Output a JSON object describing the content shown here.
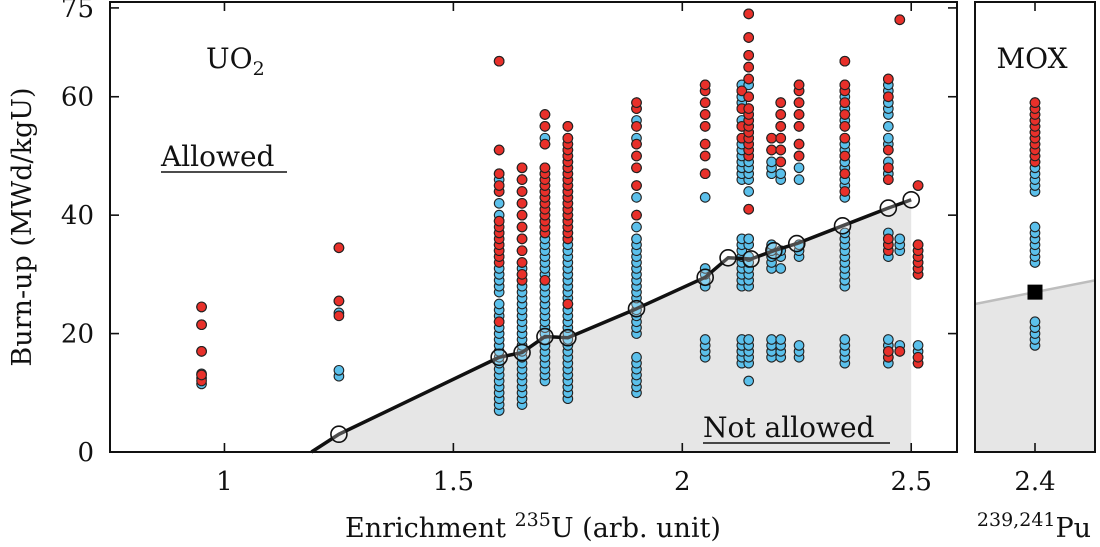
{
  "chart_data": [
    {
      "panel": "UO2",
      "type": "scatter",
      "xlabel_prefix": "Enrichment ",
      "xlabel_sup": "235",
      "xlabel_suffix": "U (arb. unit)",
      "ylabel": "Burn-up (MWd/kgU)",
      "xlim": [
        0.75,
        2.6
      ],
      "ylim": [
        0,
        76
      ],
      "xticks": [
        "1",
        "1.5",
        "2",
        "2.5"
      ],
      "xtick_values": [
        1,
        1.5,
        2,
        2.5
      ],
      "yticks": [
        "0",
        "20",
        "40",
        "60",
        "75"
      ],
      "ytick_values": [
        0,
        20,
        40,
        60,
        75
      ],
      "grid": false,
      "annotations": {
        "material_main": "UO",
        "material_sub": "2",
        "allowed": "Allowed",
        "not_allowed": "Not allowed"
      },
      "colors": {
        "blue": "#5bc0eb",
        "red": "#e8302a",
        "boundary": "#111111",
        "region_fill": "#e6e6e6"
      },
      "limit_curve": {
        "name": "limit",
        "x": [
          1.19,
          1.25,
          1.6,
          1.65,
          1.7,
          1.75,
          1.9,
          2.05,
          2.1,
          2.15,
          2.2,
          2.25,
          2.35,
          2.45,
          2.5
        ],
        "y": [
          0,
          3,
          16,
          16.8,
          19.5,
          19.3,
          24.2,
          29.5,
          32.8,
          32.6,
          34,
          35.2,
          38.2,
          41.2,
          42.6
        ]
      },
      "limit_markers_x": [
        1.25,
        1.6,
        1.65,
        1.7,
        1.75,
        1.9,
        2.05,
        2.1,
        2.15,
        2.2,
        2.25,
        2.35,
        2.45,
        2.5
      ],
      "limit_markers_y": [
        3,
        16,
        16.8,
        19.5,
        19.3,
        24.2,
        29.5,
        32.8,
        32.6,
        34,
        35.2,
        38.2,
        41.2,
        42.6
      ],
      "series": [
        {
          "color": "blue",
          "x": 0.95,
          "y": [
            11.5,
            12.5,
            13.2,
            17,
            21.5,
            24.5
          ]
        },
        {
          "color": "red",
          "x": 0.95,
          "y": [
            12,
            13,
            17,
            21.5,
            24.5
          ]
        },
        {
          "color": "blue",
          "x": 1.25,
          "y": [
            12.8,
            13.8,
            23.5,
            25.5,
            34.5
          ]
        },
        {
          "color": "red",
          "x": 1.25,
          "y": [
            23,
            25.5,
            34.5
          ]
        },
        {
          "color": "blue",
          "x": 1.6,
          "y": [
            7,
            8,
            9,
            10,
            11,
            12,
            13,
            14,
            15,
            16,
            17,
            18,
            19,
            20,
            21,
            22,
            23,
            24,
            25,
            27,
            28,
            29,
            30,
            31,
            33,
            34,
            35,
            37,
            39,
            40,
            42,
            44,
            45,
            46,
            47,
            51,
            66
          ]
        },
        {
          "color": "red",
          "x": 1.6,
          "y": [
            22,
            32,
            33,
            34,
            35,
            36,
            37,
            38,
            39,
            44,
            45,
            47,
            51,
            66
          ]
        },
        {
          "color": "blue",
          "x": 1.65,
          "y": [
            8,
            9,
            10,
            11,
            12,
            13,
            14,
            15,
            16,
            17,
            18,
            19,
            20,
            21,
            22,
            23,
            24,
            25,
            26,
            27,
            28,
            29,
            30,
            31,
            32,
            34,
            36,
            38,
            40,
            42,
            44,
            46,
            48
          ]
        },
        {
          "color": "red",
          "x": 1.65,
          "y": [
            29,
            30,
            32,
            34,
            36,
            38,
            40,
            42,
            44,
            46,
            48
          ]
        },
        {
          "color": "blue",
          "x": 1.7,
          "y": [
            12,
            13,
            14,
            15,
            16,
            17,
            18,
            19,
            20,
            21,
            22,
            23,
            24,
            25,
            26,
            27,
            28,
            29,
            30,
            31,
            32,
            33,
            34,
            35,
            36,
            37,
            38,
            39,
            40,
            41,
            42,
            43,
            44,
            45,
            46,
            47,
            48,
            52,
            53,
            55,
            57
          ]
        },
        {
          "color": "red",
          "x": 1.7,
          "y": [
            29,
            37,
            38,
            39,
            40,
            41,
            42,
            43,
            44,
            45,
            46,
            47,
            48,
            52,
            55,
            57
          ]
        },
        {
          "color": "blue",
          "x": 1.75,
          "y": [
            9,
            10,
            11,
            12,
            13,
            14,
            15,
            16,
            17,
            18,
            19,
            20,
            21,
            22,
            23,
            24,
            25,
            26,
            27,
            28,
            29,
            30,
            31,
            32,
            33,
            34,
            35,
            36,
            37,
            38,
            39,
            40,
            41,
            42,
            43,
            44,
            45,
            46,
            47,
            48,
            49,
            50,
            51,
            52,
            53,
            55
          ]
        },
        {
          "color": "red",
          "x": 1.75,
          "y": [
            25,
            36,
            37,
            38,
            39,
            40,
            41,
            42,
            43,
            44,
            45,
            46,
            47,
            48,
            49,
            50,
            51,
            52,
            53,
            55
          ]
        },
        {
          "color": "blue",
          "x": 1.9,
          "y": [
            10,
            11,
            12,
            13,
            14,
            15,
            16,
            20,
            21,
            22,
            23,
            24,
            25,
            26,
            27,
            28,
            29,
            30,
            31,
            32,
            33,
            34,
            35,
            36,
            38,
            40,
            43,
            45,
            48,
            50,
            52,
            53,
            55,
            56,
            58,
            59
          ]
        },
        {
          "color": "red",
          "x": 1.9,
          "y": [
            40,
            45,
            48,
            50,
            52,
            55,
            58,
            59
          ]
        },
        {
          "color": "blue",
          "x": 2.05,
          "y": [
            16,
            17,
            18,
            19,
            28,
            29,
            30,
            31,
            43,
            47,
            50,
            52,
            55,
            57,
            59,
            61,
            62
          ]
        },
        {
          "color": "red",
          "x": 2.05,
          "y": [
            47,
            50,
            52,
            55,
            57,
            59,
            61,
            62
          ]
        },
        {
          "color": "blue",
          "x": 2.13,
          "y": [
            15,
            16,
            17,
            18,
            19,
            28,
            29,
            30,
            31,
            32,
            33,
            34,
            35,
            36,
            46,
            47,
            48,
            49,
            50,
            51,
            52,
            53,
            55,
            56,
            58,
            59,
            60,
            61,
            62
          ]
        },
        {
          "color": "red",
          "x": 2.13,
          "y": [
            53,
            55,
            58,
            61
          ]
        },
        {
          "color": "blue",
          "x": 2.145,
          "y": [
            12,
            15,
            16,
            17,
            18,
            19,
            28,
            29,
            30,
            31,
            32,
            33,
            35,
            36,
            41,
            44,
            46,
            47,
            48,
            49,
            50,
            51,
            52,
            53,
            54,
            55,
            56,
            57,
            58,
            60,
            62,
            63,
            65,
            67,
            70,
            74
          ]
        },
        {
          "color": "red",
          "x": 2.145,
          "y": [
            41,
            50,
            51,
            52,
            53,
            54,
            55,
            56,
            57,
            58,
            60,
            63,
            65,
            67,
            70,
            74
          ]
        },
        {
          "color": "blue",
          "x": 2.195,
          "y": [
            16,
            17,
            18,
            19,
            31,
            32,
            33,
            34,
            35,
            47,
            48,
            49,
            51,
            53
          ]
        },
        {
          "color": "red",
          "x": 2.195,
          "y": [
            51,
            53
          ]
        },
        {
          "color": "blue",
          "x": 2.215,
          "y": [
            16,
            17,
            18,
            19,
            31,
            33,
            34,
            46,
            47,
            49,
            51,
            53,
            55,
            57,
            59
          ]
        },
        {
          "color": "red",
          "x": 2.215,
          "y": [
            49,
            51,
            53,
            55,
            57,
            59
          ]
        },
        {
          "color": "blue",
          "x": 2.255,
          "y": [
            16,
            17,
            18,
            33,
            34,
            35,
            46,
            48,
            50,
            52,
            55,
            57,
            59,
            61,
            62
          ]
        },
        {
          "color": "red",
          "x": 2.255,
          "y": [
            50,
            52,
            55,
            57,
            59,
            61,
            62
          ]
        },
        {
          "color": "blue",
          "x": 2.355,
          "y": [
            15,
            16,
            17,
            18,
            19,
            28,
            29,
            30,
            31,
            32,
            33,
            34,
            35,
            36,
            37,
            43,
            45,
            46,
            47,
            48,
            49,
            50,
            51,
            52,
            53,
            55,
            56,
            57,
            58,
            59,
            60,
            61,
            62,
            66
          ]
        },
        {
          "color": "red",
          "x": 2.355,
          "y": [
            44,
            47,
            50,
            53,
            55,
            57,
            59,
            61,
            62,
            66
          ]
        },
        {
          "color": "blue",
          "x": 2.45,
          "y": [
            15,
            16,
            17,
            18,
            19,
            33,
            34,
            35,
            36,
            37,
            46,
            47,
            48,
            49,
            51,
            52,
            53,
            55,
            57,
            58,
            59,
            60,
            61,
            62,
            63
          ]
        },
        {
          "color": "red",
          "x": 2.45,
          "y": [
            16,
            17,
            34,
            35,
            36,
            46,
            48,
            51,
            60,
            63
          ]
        },
        {
          "color": "blue",
          "x": 2.475,
          "y": [
            17,
            18,
            34,
            35,
            36,
            73
          ]
        },
        {
          "color": "red",
          "x": 2.475,
          "y": [
            17,
            73
          ]
        },
        {
          "color": "blue",
          "x": 2.515,
          "y": [
            15,
            16,
            17,
            18,
            30,
            31,
            32,
            33,
            34,
            35,
            45
          ]
        },
        {
          "color": "red",
          "x": 2.515,
          "y": [
            15,
            16,
            30,
            31,
            32,
            33,
            34,
            35,
            45
          ]
        }
      ]
    },
    {
      "panel": "MOX",
      "type": "scatter",
      "xlabel_sup": "239,241",
      "xlabel_suffix": "Pu",
      "xlim": [
        2.35,
        2.45
      ],
      "ylim": [
        0,
        76
      ],
      "xticks": [
        "2.4"
      ],
      "xtick_values": [
        2.4
      ],
      "annotations": {
        "material": "MOX"
      },
      "limit_line": {
        "x": [
          2.35,
          2.45
        ],
        "y": [
          25,
          29
        ]
      },
      "limit_marker": {
        "x": 2.4,
        "y": 27
      },
      "series": [
        {
          "color": "blue",
          "x": 2.4,
          "y": [
            18,
            19,
            20,
            21,
            22,
            32,
            33,
            34,
            35,
            36,
            37,
            38,
            44,
            45,
            46,
            47,
            48,
            49,
            50,
            51,
            52,
            53,
            54,
            55,
            56,
            57,
            58,
            59
          ]
        },
        {
          "color": "red",
          "x": 2.4,
          "y": [
            49,
            50,
            51,
            52,
            53,
            54,
            55,
            56,
            57,
            58,
            59
          ]
        }
      ]
    }
  ]
}
